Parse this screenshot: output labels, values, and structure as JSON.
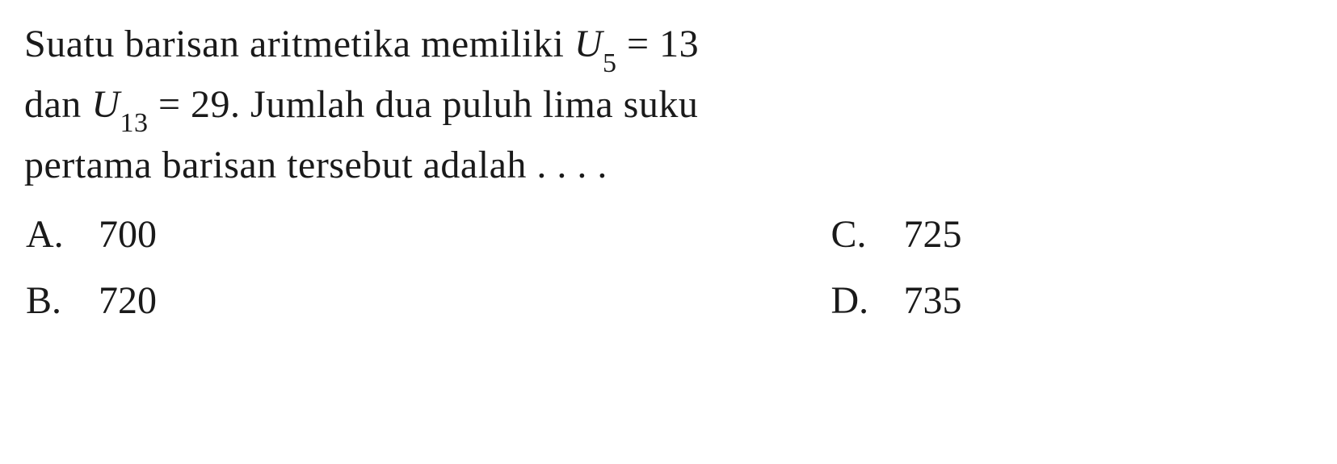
{
  "question": {
    "line1_part1": "Suatu barisan aritmetika memiliki ",
    "line1_var": "U",
    "line1_sub": "5",
    "line1_part2": " = 13",
    "line2_part1": "dan ",
    "line2_var": "U",
    "line2_sub": "13",
    "line2_part2": " = 29. Jumlah dua puluh lima suku",
    "line3": "pertama barisan tersebut adalah . . . ."
  },
  "options": {
    "a": {
      "letter": "A.",
      "value": "700"
    },
    "b": {
      "letter": "B.",
      "value": "720"
    },
    "c": {
      "letter": "C.",
      "value": "725"
    },
    "d": {
      "letter": "D.",
      "value": "735"
    }
  },
  "style": {
    "text_color": "#1a1a1a",
    "background_color": "#ffffff",
    "font_family": "Times New Roman",
    "base_fontsize": 48,
    "subscript_fontsize": 34
  }
}
